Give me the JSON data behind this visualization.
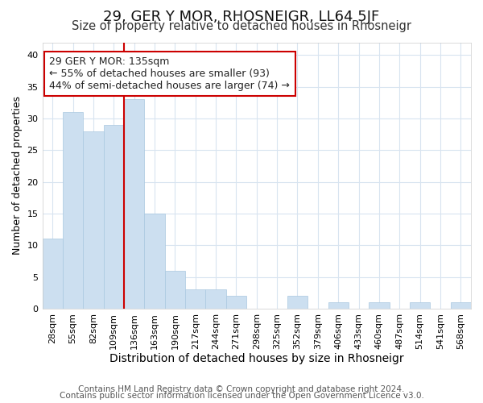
{
  "title": "29, GER Y MOR, RHOSNEIGR, LL64 5JF",
  "subtitle": "Size of property relative to detached houses in Rhosneigr",
  "xlabel": "Distribution of detached houses by size in Rhosneigr",
  "ylabel": "Number of detached properties",
  "footer_lines": [
    "Contains HM Land Registry data © Crown copyright and database right 2024.",
    "Contains public sector information licensed under the Open Government Licence v3.0."
  ],
  "bar_labels": [
    "28sqm",
    "55sqm",
    "82sqm",
    "109sqm",
    "136sqm",
    "163sqm",
    "190sqm",
    "217sqm",
    "244sqm",
    "271sqm",
    "298sqm",
    "325sqm",
    "352sqm",
    "379sqm",
    "406sqm",
    "433sqm",
    "460sqm",
    "487sqm",
    "514sqm",
    "541sqm",
    "568sqm"
  ],
  "bar_values": [
    11,
    31,
    28,
    29,
    33,
    15,
    6,
    3,
    3,
    2,
    0,
    0,
    2,
    0,
    1,
    0,
    1,
    0,
    1,
    0,
    1
  ],
  "bar_color": "#ccdff0",
  "bar_edge_color": "#aac8e0",
  "property_line_x": 4,
  "property_line_color": "#cc0000",
  "annotation_text": "29 GER Y MOR: 135sqm\n← 55% of detached houses are smaller (93)\n44% of semi-detached houses are larger (74) →",
  "annotation_box_facecolor": "#ffffff",
  "annotation_box_edgecolor": "#cc0000",
  "ylim": [
    0,
    42
  ],
  "yticks": [
    0,
    5,
    10,
    15,
    20,
    25,
    30,
    35,
    40
  ],
  "figure_background": "#ffffff",
  "axes_background": "#ffffff",
  "grid_color": "#d8e4f0",
  "title_fontsize": 13,
  "subtitle_fontsize": 10.5,
  "xlabel_fontsize": 10,
  "ylabel_fontsize": 9,
  "tick_fontsize": 8,
  "annotation_fontsize": 9,
  "footer_fontsize": 7.5
}
